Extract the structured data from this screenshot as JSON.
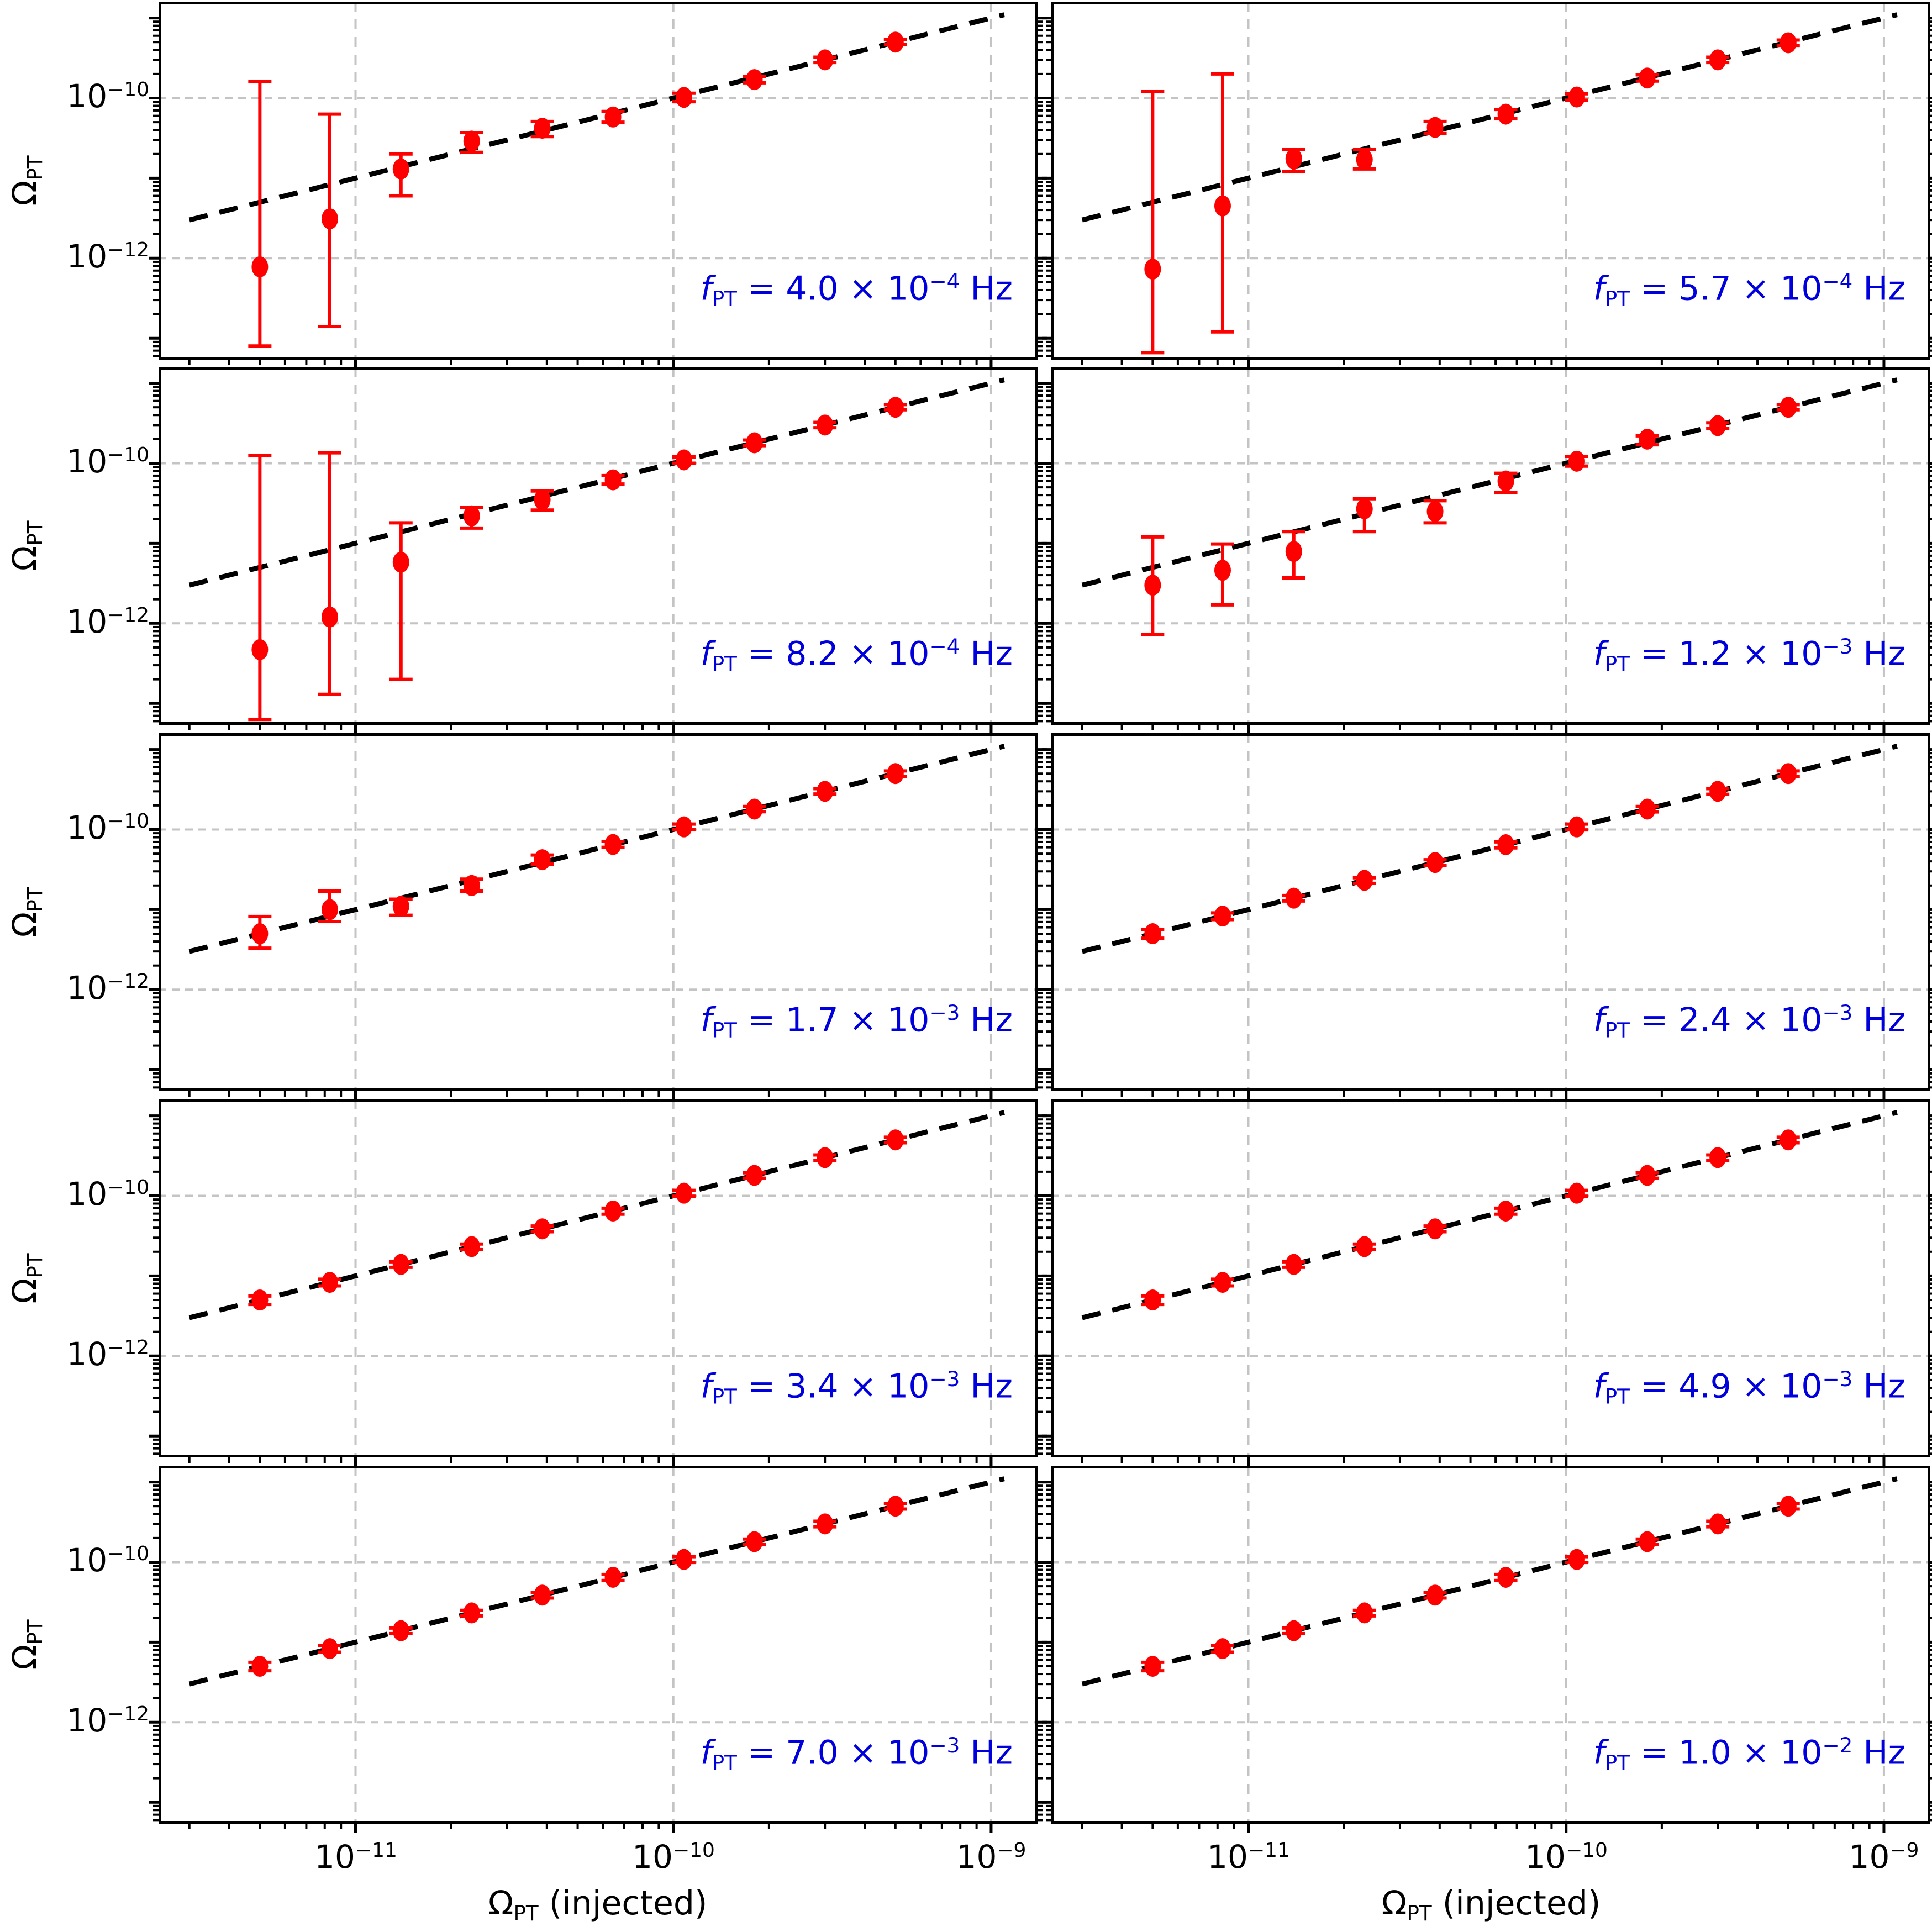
{
  "colors": {
    "marker": "#ff0000",
    "error_bar": "#ff0000",
    "identity_line": "#000000",
    "grid": "#c4c4c4",
    "spine": "#000000",
    "freq_label": "#0000dd",
    "tick_label": "#000000",
    "background": "#ffffff"
  },
  "axes": {
    "xlabel": {
      "symbol": "Ω",
      "subscript": "PT",
      "suffix": " (injected)"
    },
    "ylabel": {
      "symbol": "Ω",
      "subscript": "PT"
    },
    "x_tick_labels": [
      {
        "value": 1e-11,
        "base": "10",
        "exp": "−11"
      },
      {
        "value": 1e-10,
        "base": "10",
        "exp": "−10"
      },
      {
        "value": 1e-09,
        "base": "10",
        "exp": "−9"
      }
    ],
    "y_tick_labels": [
      {
        "value": 1e-10,
        "base": "10",
        "exp": "−10"
      },
      {
        "value": 1e-12,
        "base": "10",
        "exp": "−12"
      }
    ]
  },
  "chart_data": {
    "type": "scatter",
    "x_scale": "log",
    "y_scale": "log",
    "xlabel": "Omega_PT (injected)",
    "ylabel": "Omega_PT",
    "xlim": [
      2.4e-12,
      1.4e-09
    ],
    "ylim": [
      5.4e-14,
      1.6e-09
    ],
    "x_major_ticks": [
      1e-11,
      1e-10,
      1e-09
    ],
    "y_major_ticks": [
      1e-09,
      1e-10,
      1e-11,
      1e-12,
      1e-13
    ],
    "grid_x": [
      1e-11,
      1e-10,
      1e-09
    ],
    "grid_y": [
      1e-10,
      1e-12
    ],
    "grid_on": true,
    "identity_line": {
      "relation": "y = x",
      "x_start": 3e-12,
      "x_end": 1.1e-09
    },
    "x_injected": [
      5e-12,
      8.3e-12,
      1.39e-11,
      2.32e-11,
      3.87e-11,
      6.46e-11,
      1.08e-10,
      1.8e-10,
      3e-10,
      5e-10
    ],
    "panels": [
      {
        "freq": {
          "mantissa": "4.0",
          "exponent": "−4",
          "value_hz": 0.0004
        },
        "y": [
          7.8e-13,
          3.1e-12,
          1.3e-11,
          2.9e-11,
          4.2e-11,
          5.8e-11,
          1.02e-10,
          1.7e-10,
          3e-10,
          5e-10
        ],
        "y_err_lo": [
          8e-14,
          1.4e-13,
          6e-12,
          2.1e-11,
          3.3e-11,
          5e-11,
          9e-11,
          1.55e-10,
          2.78e-10,
          4.65e-10
        ],
        "y_err_hi": [
          1.6e-10,
          6.3e-11,
          2e-11,
          3.7e-11,
          5.1e-11,
          6.8e-11,
          1.15e-10,
          1.86e-10,
          3.24e-10,
          5.4e-10
        ]
      },
      {
        "freq": {
          "mantissa": "5.7",
          "exponent": "−4",
          "value_hz": 0.00057
        },
        "y": [
          7.3e-13,
          4.5e-12,
          1.75e-11,
          1.7e-11,
          4.3e-11,
          6.3e-11,
          1.03e-10,
          1.78e-10,
          3e-10,
          4.9e-10
        ],
        "y_err_lo": [
          6.6e-14,
          1.2e-13,
          1.2e-11,
          1.3e-11,
          3.6e-11,
          5.6e-11,
          9.4e-11,
          1.63e-10,
          2.78e-10,
          4.55e-10
        ],
        "y_err_hi": [
          1.2e-10,
          2e-10,
          2.3e-11,
          2.3e-11,
          5.1e-11,
          7.2e-11,
          1.13e-10,
          1.95e-10,
          3.24e-10,
          5.3e-10
        ]
      },
      {
        "freq": {
          "mantissa": "8.2",
          "exponent": "−4",
          "value_hz": 0.00082
        },
        "y": [
          4.7e-13,
          1.2e-12,
          5.8e-12,
          2.2e-11,
          3.5e-11,
          6.2e-11,
          1.1e-10,
          1.8e-10,
          3e-10,
          5e-10
        ],
        "y_err_lo": [
          6.3e-14,
          1.3e-13,
          2e-13,
          1.55e-11,
          2.6e-11,
          5.5e-11,
          1e-10,
          1.66e-10,
          2.78e-10,
          4.65e-10
        ],
        "y_err_hi": [
          1.25e-10,
          1.35e-10,
          1.8e-11,
          2.8e-11,
          4.5e-11,
          7e-11,
          1.2e-10,
          1.95e-10,
          3.24e-10,
          5.4e-10
        ]
      },
      {
        "freq": {
          "mantissa": "1.2",
          "exponent": "−3",
          "value_hz": 0.0012
        },
        "y": [
          3e-12,
          4.6e-12,
          7.9e-12,
          2.7e-11,
          2.5e-11,
          6e-11,
          1.06e-10,
          2e-10,
          2.95e-10,
          5e-10
        ],
        "y_err_lo": [
          7.2e-13,
          1.7e-12,
          3.7e-12,
          1.4e-11,
          1.8e-11,
          4.3e-11,
          9.2e-11,
          1.7e-10,
          2.7e-10,
          4.65e-10
        ],
        "y_err_hi": [
          1.2e-11,
          9.8e-12,
          1.4e-11,
          3.6e-11,
          3.4e-11,
          7.5e-11,
          1.22e-10,
          2.2e-10,
          3.2e-10,
          5.4e-10
        ]
      },
      {
        "freq": {
          "mantissa": "1.7",
          "exponent": "−3",
          "value_hz": 0.0017
        },
        "y": [
          5e-12,
          1e-11,
          1.1e-11,
          2e-11,
          4.2e-11,
          6.5e-11,
          1.08e-10,
          1.8e-10,
          3e-10,
          5e-10
        ],
        "y_err_lo": [
          3.3e-12,
          7.1e-12,
          8.5e-12,
          1.7e-11,
          3.7e-11,
          6e-11,
          1e-10,
          1.67e-10,
          2.78e-10,
          4.6e-10
        ],
        "y_err_hi": [
          8.2e-12,
          1.7e-11,
          1.35e-11,
          2.4e-11,
          4.8e-11,
          7.1e-11,
          1.17e-10,
          1.94e-10,
          3.24e-10,
          5.4e-10
        ]
      },
      {
        "freq": {
          "mantissa": "2.4",
          "exponent": "−3",
          "value_hz": 0.0024
        },
        "y": [
          5e-12,
          8.3e-12,
          1.39e-11,
          2.32e-11,
          3.87e-11,
          6.46e-11,
          1.08e-10,
          1.8e-10,
          3e-10,
          5e-10
        ],
        "y_err_lo": [
          4.4e-12,
          7.5e-12,
          1.28e-11,
          2.13e-11,
          3.56e-11,
          5.9e-11,
          9.9e-11,
          1.66e-10,
          2.76e-10,
          4.6e-10
        ],
        "y_err_hi": [
          5.6e-12,
          9.1e-12,
          1.5e-11,
          2.5e-11,
          4.2e-11,
          7e-11,
          1.17e-10,
          1.94e-10,
          3.24e-10,
          5.4e-10
        ]
      },
      {
        "freq": {
          "mantissa": "3.4",
          "exponent": "−3",
          "value_hz": 0.0034
        },
        "y": [
          5e-12,
          8.3e-12,
          1.39e-11,
          2.32e-11,
          3.87e-11,
          6.46e-11,
          1.08e-10,
          1.8e-10,
          3e-10,
          5e-10
        ],
        "y_err_lo": [
          4.4e-12,
          7.5e-12,
          1.28e-11,
          2.13e-11,
          3.56e-11,
          5.9e-11,
          9.9e-11,
          1.66e-10,
          2.76e-10,
          4.6e-10
        ],
        "y_err_hi": [
          5.6e-12,
          9.1e-12,
          1.5e-11,
          2.5e-11,
          4.2e-11,
          7e-11,
          1.17e-10,
          1.94e-10,
          3.24e-10,
          5.4e-10
        ]
      },
      {
        "freq": {
          "mantissa": "4.9",
          "exponent": "−3",
          "value_hz": 0.0049
        },
        "y": [
          5e-12,
          8.3e-12,
          1.39e-11,
          2.32e-11,
          3.87e-11,
          6.46e-11,
          1.08e-10,
          1.8e-10,
          3e-10,
          5e-10
        ],
        "y_err_lo": [
          4.4e-12,
          7.5e-12,
          1.28e-11,
          2.13e-11,
          3.56e-11,
          5.9e-11,
          9.9e-11,
          1.66e-10,
          2.76e-10,
          4.6e-10
        ],
        "y_err_hi": [
          5.6e-12,
          9.1e-12,
          1.5e-11,
          2.5e-11,
          4.2e-11,
          7e-11,
          1.17e-10,
          1.94e-10,
          3.24e-10,
          5.4e-10
        ]
      },
      {
        "freq": {
          "mantissa": "7.0",
          "exponent": "−3",
          "value_hz": 0.007
        },
        "y": [
          5e-12,
          8.3e-12,
          1.39e-11,
          2.32e-11,
          3.87e-11,
          6.46e-11,
          1.08e-10,
          1.8e-10,
          3e-10,
          5e-10
        ],
        "y_err_lo": [
          4.4e-12,
          7.5e-12,
          1.28e-11,
          2.13e-11,
          3.56e-11,
          5.9e-11,
          9.9e-11,
          1.66e-10,
          2.76e-10,
          4.6e-10
        ],
        "y_err_hi": [
          5.6e-12,
          9.1e-12,
          1.5e-11,
          2.5e-11,
          4.2e-11,
          7e-11,
          1.17e-10,
          1.94e-10,
          3.24e-10,
          5.4e-10
        ]
      },
      {
        "freq": {
          "mantissa": "1.0",
          "exponent": "−2",
          "value_hz": 0.01
        },
        "y": [
          5e-12,
          8.3e-12,
          1.39e-11,
          2.32e-11,
          3.87e-11,
          6.46e-11,
          1.08e-10,
          1.8e-10,
          3e-10,
          5e-10
        ],
        "y_err_lo": [
          4.4e-12,
          7.5e-12,
          1.28e-11,
          2.13e-11,
          3.56e-11,
          5.9e-11,
          9.9e-11,
          1.66e-10,
          2.76e-10,
          4.6e-10
        ],
        "y_err_hi": [
          5.6e-12,
          9.1e-12,
          1.5e-11,
          2.5e-11,
          4.2e-11,
          7e-11,
          1.17e-10,
          1.94e-10,
          3.24e-10,
          5.4e-10
        ]
      }
    ]
  }
}
